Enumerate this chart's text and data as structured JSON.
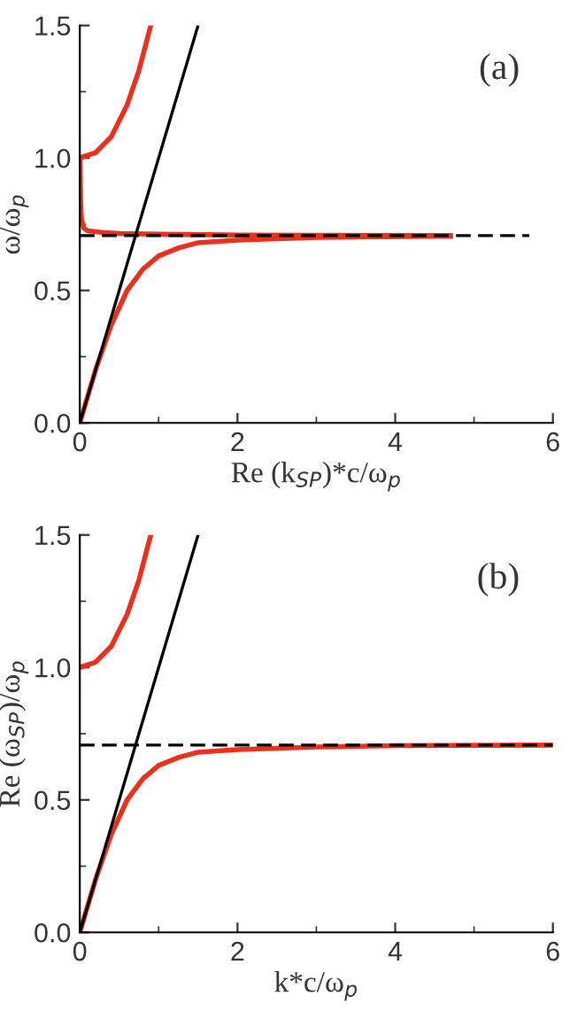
{
  "chart_data": [
    {
      "type": "line",
      "xlabel": "Re (k$_{SP}$)*c/ω$_{p}$",
      "ylabel": "ω/ω$_{p}$",
      "annotations": [
        "(a)"
      ],
      "xlim": [
        0,
        6
      ],
      "ylim": [
        0,
        1.5
      ],
      "xticks": [
        0,
        2,
        4,
        6
      ],
      "yticks": [
        {
          "value": 0,
          "label": "0.0"
        },
        {
          "value": 0.5,
          "label": "0.5"
        },
        {
          "value": 1,
          "label": "1.0"
        },
        {
          "value": 1.5,
          "label": "1.5"
        }
      ],
      "grid": false,
      "legend": false,
      "series": [
        {
          "color": "#e8321e",
          "line_style": "solid",
          "x": [
            0,
            0.2,
            0.4,
            0.6,
            0.75,
            0.9
          ],
          "values": [
            1.0,
            1.02,
            1.08,
            1.2,
            1.33,
            1.5
          ]
        },
        {
          "color": "#e8321e",
          "line_style": "solid",
          "x": [
            0,
            0.005,
            0.01,
            0.02,
            0.05,
            0.1,
            0.3,
            0.5,
            1,
            2,
            3,
            4.7
          ],
          "values": [
            1.0,
            0.95,
            0.85,
            0.77,
            0.735,
            0.725,
            0.718,
            0.715,
            0.712,
            0.709,
            0.708,
            0.707
          ]
        },
        {
          "color": "#e8321e",
          "line_style": "solid",
          "x": [
            0,
            0.2,
            0.4,
            0.6,
            0.8,
            1.0,
            1.25,
            1.5,
            2,
            3,
            4.7
          ],
          "values": [
            0,
            0.2,
            0.37,
            0.5,
            0.58,
            0.63,
            0.66,
            0.68,
            0.69,
            0.7,
            0.705
          ]
        },
        {
          "color": "#000000",
          "line_style": "solid",
          "x": [
            0,
            1.5
          ],
          "values": [
            0,
            1.5
          ]
        },
        {
          "color": "#000000",
          "line_style": "dashed",
          "x": [
            0,
            5.7
          ],
          "values": [
            0.707,
            0.707
          ]
        }
      ]
    },
    {
      "type": "line",
      "xlabel": "k*c/ω$_{p}$",
      "ylabel": "Re (ω$_{SP}$)/ω$_{p}$",
      "annotations": [
        "(b)"
      ],
      "xlim": [
        0,
        6
      ],
      "ylim": [
        0,
        1.5
      ],
      "xticks": [
        0,
        2,
        4,
        6
      ],
      "yticks": [
        {
          "value": 0,
          "label": "0.0"
        },
        {
          "value": 0.5,
          "label": "0.5"
        },
        {
          "value": 1,
          "label": "1.0"
        },
        {
          "value": 1.5,
          "label": "1.5"
        }
      ],
      "grid": false,
      "legend": false,
      "series": [
        {
          "color": "#e8321e",
          "line_style": "solid",
          "x": [
            0,
            0.2,
            0.4,
            0.6,
            0.75,
            0.9
          ],
          "values": [
            1.0,
            1.02,
            1.08,
            1.2,
            1.33,
            1.5
          ]
        },
        {
          "color": "#e8321e",
          "line_style": "solid",
          "x": [
            0,
            0.2,
            0.4,
            0.6,
            0.8,
            1.0,
            1.25,
            1.5,
            2,
            3,
            4,
            6
          ],
          "values": [
            0,
            0.2,
            0.37,
            0.5,
            0.58,
            0.63,
            0.66,
            0.68,
            0.69,
            0.7,
            0.705,
            0.707
          ]
        },
        {
          "color": "#000000",
          "line_style": "solid",
          "x": [
            0,
            1.5
          ],
          "values": [
            0,
            1.5
          ]
        },
        {
          "color": "#000000",
          "line_style": "dashed",
          "x": [
            0,
            6
          ],
          "values": [
            0.707,
            0.707
          ]
        }
      ]
    }
  ]
}
